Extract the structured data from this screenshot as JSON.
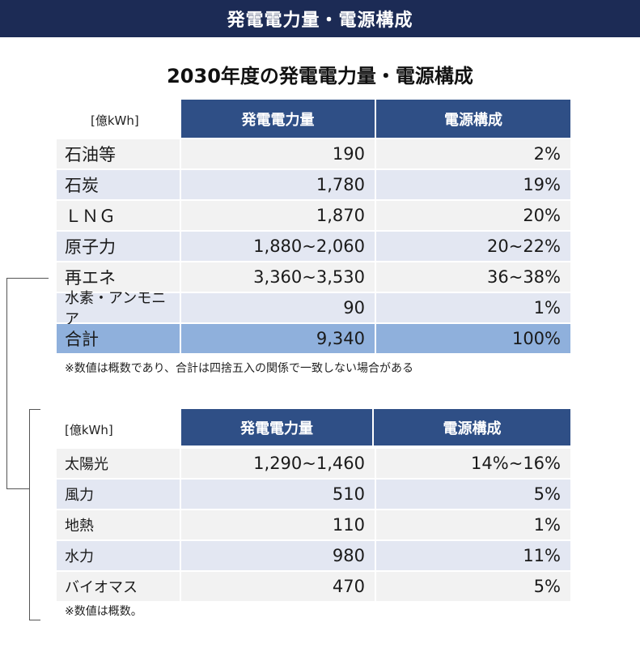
{
  "header": {
    "title": "発電電力量・電源構成"
  },
  "main_title": "2030年度の発電電力量・電源構成",
  "table1": {
    "unit": "[億kWh]",
    "columns": [
      "発電電力量",
      "電源構成"
    ],
    "rows": [
      {
        "name": "石油等",
        "gen": "190",
        "mix": "2%"
      },
      {
        "name": "石炭",
        "gen": "1,780",
        "mix": "19%"
      },
      {
        "name": "ＬＮＧ",
        "gen": "1,870",
        "mix": "20%"
      },
      {
        "name": "原子力",
        "gen": "1,880~2,060",
        "mix": "20~22%"
      },
      {
        "name": "再エネ",
        "gen": "3,360~3,530",
        "mix": "36~38%"
      },
      {
        "name": "水素・アンモニア",
        "gen": "90",
        "mix": "1%"
      },
      {
        "name": "合計",
        "gen": "9,340",
        "mix": "100%"
      }
    ],
    "note": "※数値は概数であり、合計は四捨五入の関係で一致しない場合がある"
  },
  "table2": {
    "unit": "[億kWh]",
    "columns": [
      "発電電力量",
      "電源構成"
    ],
    "rows": [
      {
        "name": "太陽光",
        "gen": "1,290~1,460",
        "mix": "14%~16%"
      },
      {
        "name": "風力",
        "gen": "510",
        "mix": "5%"
      },
      {
        "name": "地熱",
        "gen": "110",
        "mix": "1%"
      },
      {
        "name": "水力",
        "gen": "980",
        "mix": "11%"
      },
      {
        "name": "バイオマス",
        "gen": "470",
        "mix": "5%"
      }
    ],
    "note": "※数値は概数。"
  },
  "colors": {
    "header_bg": "#1c2b55",
    "column_header_bg": "#2f4f86",
    "total_row_bg": "#8fb0dc",
    "row_alt_bg": "#e3e7f2"
  }
}
